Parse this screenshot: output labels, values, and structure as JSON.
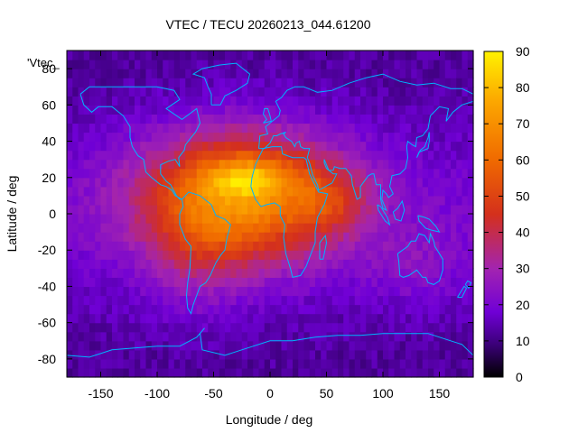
{
  "chart_data": {
    "type": "heatmap",
    "title": "VTEC / TECU 20260213_044.61200",
    "xlabel": "Longitude / deg",
    "ylabel": "Latitude / deg",
    "legend_label": "'Vtec_",
    "xlim": [
      -180,
      180
    ],
    "ylim": [
      -90,
      90
    ],
    "x_ticks": [
      -150,
      -100,
      -50,
      0,
      50,
      100,
      150
    ],
    "y_ticks": [
      -80,
      -60,
      -40,
      -20,
      0,
      20,
      40,
      60,
      80
    ],
    "colorbar": {
      "range": [
        0,
        90
      ],
      "ticks": [
        0,
        10,
        20,
        30,
        40,
        50,
        60,
        70,
        80,
        90
      ],
      "colors": [
        "#000000",
        "#3b0078",
        "#7000d6",
        "#a324b0",
        "#d4301c",
        "#f06a00",
        "#fca800",
        "#fff200"
      ],
      "stops": [
        0,
        0.1,
        0.2,
        0.333,
        0.5,
        0.667,
        0.85,
        1
      ]
    },
    "grid": false,
    "components": [
      {
        "lon": -25,
        "lat": 10,
        "amp": 50,
        "slon": 60,
        "slat": 25
      },
      {
        "lon": -20,
        "lat": 20,
        "amp": 22,
        "slon": 25,
        "slat": 7
      },
      {
        "lon": -65,
        "lat": -20,
        "amp": 10,
        "slon": 30,
        "slat": 25
      },
      {
        "lon": 55,
        "lat": 8,
        "amp": 14,
        "slon": 22,
        "slat": 12
      },
      {
        "lon": 130,
        "lat": -30,
        "amp": 6,
        "slon": 30,
        "slat": 15
      }
    ],
    "background": {
      "base": 12,
      "equator_amp": 8,
      "equator_width": 35,
      "noise": 3
    }
  },
  "colors": {
    "coastline": "#00b4ff",
    "frame": "#000000"
  }
}
